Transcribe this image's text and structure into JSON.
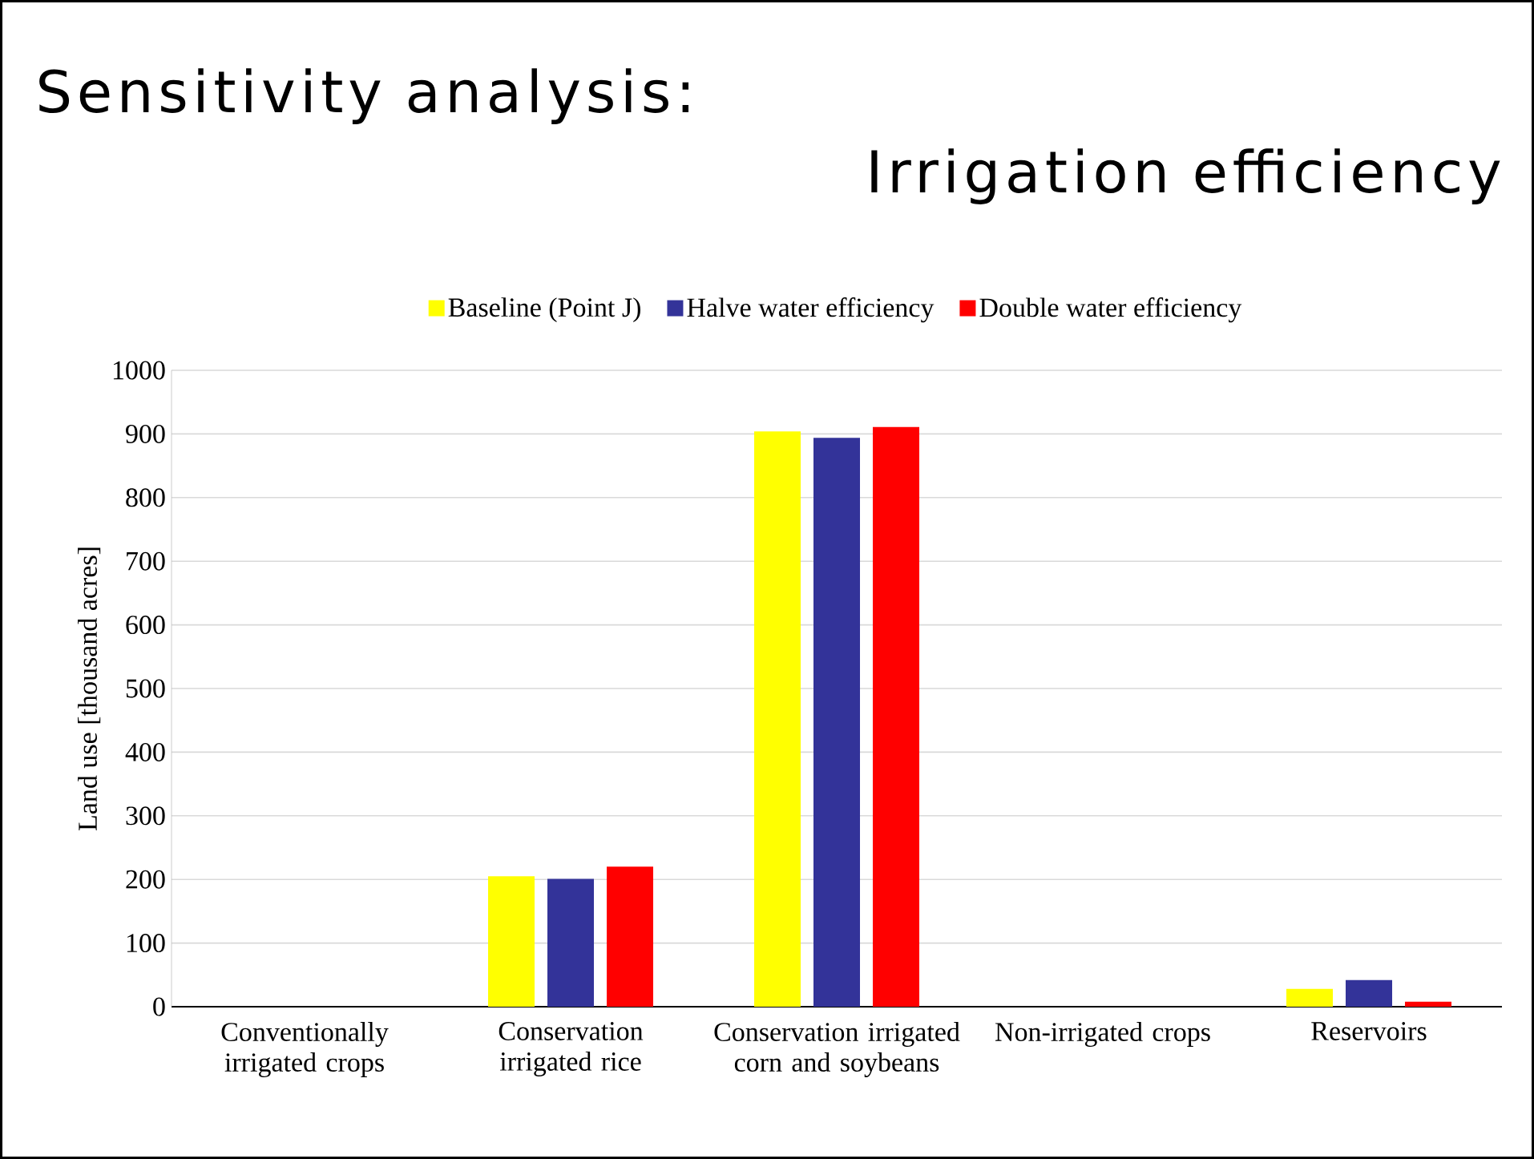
{
  "chart_data": {
    "type": "bar",
    "title": "Sensitivity analysis:",
    "subtitle": "Irrigation efficiency",
    "ylabel": "Land use [thousand acres]",
    "categories": [
      "Conventionally irrigated crops",
      "Conservation irrigated rice",
      "Conservation irrigated corn and soybeans",
      "Non-irrigated crops",
      "Reservoirs"
    ],
    "series": [
      {
        "name": "Baseline (Point J)",
        "color": "#ffff00",
        "values": [
          0,
          205,
          904,
          0,
          28
        ]
      },
      {
        "name": "Halve water efficiency",
        "color": "#333399",
        "values": [
          0,
          201,
          894,
          0,
          42
        ]
      },
      {
        "name": "Double water efficiency",
        "color": "#ff0000",
        "values": [
          0,
          220,
          911,
          0,
          8
        ]
      }
    ],
    "ylim": [
      0,
      1000
    ],
    "yticks": [
      0,
      100,
      200,
      300,
      400,
      500,
      600,
      700,
      800,
      900,
      1000
    ],
    "grid": "y",
    "legend": "top"
  }
}
